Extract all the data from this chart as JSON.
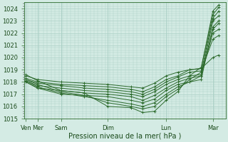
{
  "xlabel": "Pression niveau de la mer( hPa )",
  "ylim": [
    1015,
    1024.5
  ],
  "yticks": [
    1015,
    1016,
    1017,
    1018,
    1019,
    1020,
    1021,
    1022,
    1023,
    1024
  ],
  "x_day_labels": [
    "Ven",
    "Mer",
    "Sam",
    "Dim",
    "Lun",
    "Mar"
  ],
  "x_day_positions": [
    0,
    12,
    36,
    84,
    144,
    192
  ],
  "xlim": [
    -2,
    205
  ],
  "bg_color": "#d4ebe4",
  "grid_color": "#aacfc5",
  "line_color": "#2d6b2d",
  "marker_color": "#2d6b2d",
  "lines": [
    {
      "x": [
        0,
        12,
        36,
        60,
        84,
        108,
        120,
        132,
        144,
        156,
        168,
        180,
        192,
        198
      ],
      "y": [
        1018.6,
        1018.1,
        1017.3,
        1017.1,
        1016.0,
        1015.9,
        1015.5,
        1015.6,
        1016.5,
        1017.2,
        1018.5,
        1019.2,
        1023.5,
        1024.1
      ]
    },
    {
      "x": [
        0,
        12,
        36,
        60,
        84,
        108,
        120,
        132,
        144,
        156,
        168,
        180,
        192,
        198
      ],
      "y": [
        1018.2,
        1017.8,
        1017.2,
        1016.9,
        1016.3,
        1016.0,
        1015.8,
        1016.0,
        1016.8,
        1017.4,
        1018.2,
        1018.8,
        1023.2,
        1023.8
      ]
    },
    {
      "x": [
        0,
        12,
        36,
        60,
        84,
        108,
        120,
        132,
        144,
        156,
        168,
        180,
        192,
        198
      ],
      "y": [
        1018.1,
        1017.6,
        1017.1,
        1016.8,
        1016.5,
        1016.2,
        1016.0,
        1016.3,
        1017.0,
        1017.6,
        1018.0,
        1018.5,
        1023.0,
        1023.4
      ]
    },
    {
      "x": [
        0,
        12,
        36,
        60,
        84,
        108,
        120,
        132,
        144,
        156,
        168,
        180,
        192,
        198
      ],
      "y": [
        1018.0,
        1017.5,
        1017.0,
        1016.9,
        1016.8,
        1016.5,
        1016.3,
        1016.6,
        1017.3,
        1017.8,
        1018.0,
        1018.2,
        1022.5,
        1023.0
      ]
    },
    {
      "x": [
        0,
        12,
        36,
        60,
        84,
        108,
        120,
        132,
        144,
        156,
        168,
        180,
        192,
        198
      ],
      "y": [
        1018.0,
        1017.5,
        1017.3,
        1017.1,
        1017.0,
        1016.8,
        1016.5,
        1016.9,
        1017.5,
        1018.0,
        1018.3,
        1018.5,
        1022.3,
        1022.8
      ]
    },
    {
      "x": [
        0,
        12,
        36,
        60,
        84,
        108,
        120,
        132,
        144,
        156,
        168,
        180,
        192,
        198
      ],
      "y": [
        1018.1,
        1017.7,
        1017.5,
        1017.3,
        1017.2,
        1017.0,
        1016.8,
        1017.2,
        1017.8,
        1018.2,
        1018.5,
        1018.6,
        1022.0,
        1022.3
      ]
    },
    {
      "x": [
        0,
        12,
        36,
        60,
        84,
        108,
        120,
        132,
        144,
        156,
        168,
        180,
        192,
        198
      ],
      "y": [
        1018.2,
        1017.9,
        1017.7,
        1017.5,
        1017.4,
        1017.2,
        1017.0,
        1017.4,
        1018.0,
        1018.4,
        1018.8,
        1018.9,
        1021.5,
        1021.8
      ]
    },
    {
      "x": [
        0,
        12,
        36,
        60,
        84,
        108,
        120,
        132,
        144,
        156,
        168,
        180,
        192,
        198
      ],
      "y": [
        1018.3,
        1018.0,
        1017.8,
        1017.7,
        1017.6,
        1017.4,
        1017.2,
        1017.6,
        1018.2,
        1018.5,
        1019.0,
        1019.1,
        1020.0,
        1020.2
      ]
    },
    {
      "x": [
        0,
        12,
        36,
        60,
        84,
        108,
        120,
        132,
        144,
        156,
        168,
        180,
        192,
        198
      ],
      "y": [
        1018.5,
        1018.2,
        1018.0,
        1017.9,
        1017.8,
        1017.6,
        1017.5,
        1017.9,
        1018.5,
        1018.8,
        1019.0,
        1019.1,
        1023.8,
        1024.3
      ]
    }
  ]
}
